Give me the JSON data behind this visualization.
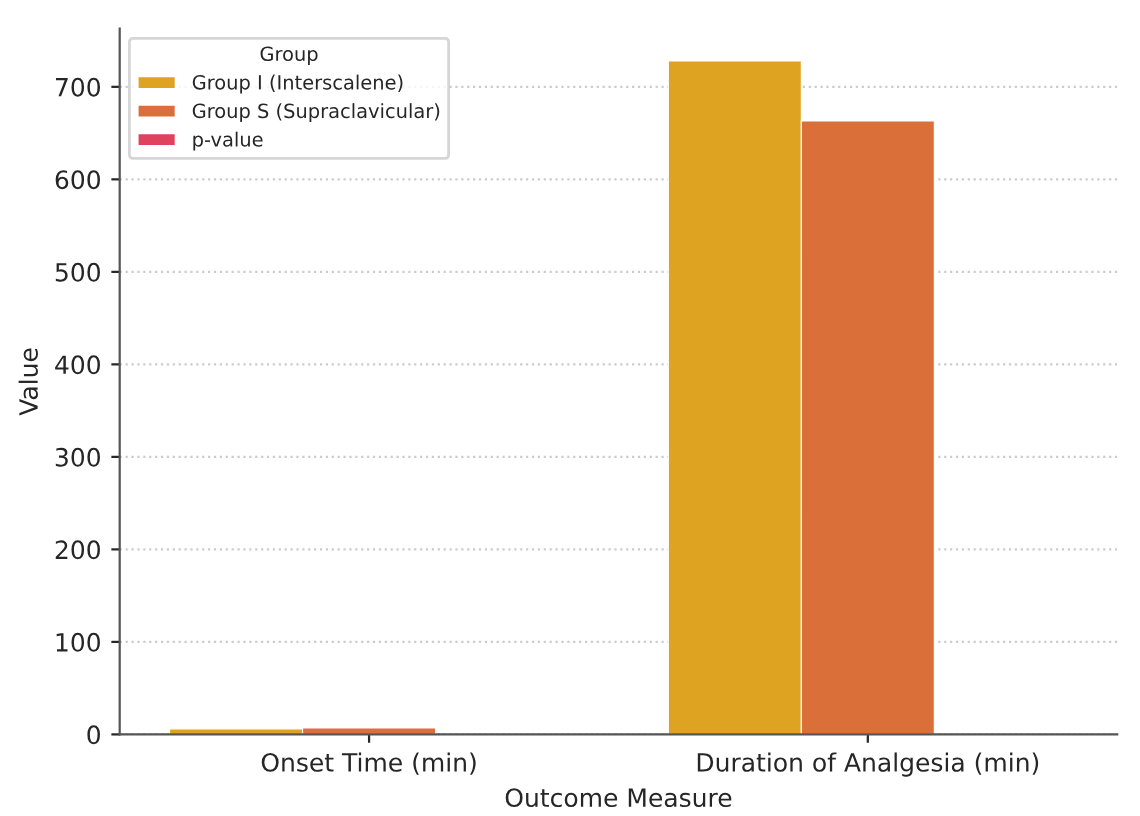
{
  "chart_data": {
    "type": "bar",
    "xlabel": "Outcome Measure",
    "ylabel": "Value",
    "legend_title": "Group",
    "categories": [
      "Onset Time (min)",
      "Duration of Analgesia (min)"
    ],
    "series": [
      {
        "name": "Group I (Interscalene)",
        "color": "#dfa322",
        "values": [
          6,
          728
        ]
      },
      {
        "name": "Group S (Supraclavicular)",
        "color": "#db6f3a",
        "values": [
          7,
          663
        ]
      },
      {
        "name": "p-value",
        "color": "#e0415e",
        "values": [
          null,
          null
        ]
      }
    ],
    "ylim": [
      0,
      763
    ],
    "yticks": [
      0,
      100,
      200,
      300,
      400,
      500,
      600,
      700
    ],
    "grid": "y",
    "legend": "top left"
  }
}
